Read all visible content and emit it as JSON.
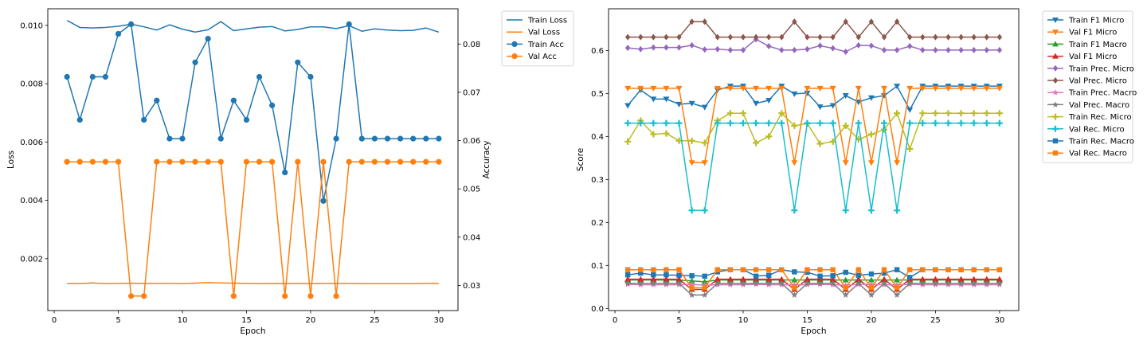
{
  "chart_data": [
    {
      "type": "line",
      "xlabel": "Epoch",
      "ylabel": "Loss",
      "ylabel_right": "Accuracy",
      "xlim": [
        -0.5,
        31.5
      ],
      "ylim": [
        0.00022,
        0.01057
      ],
      "ylim_right": [
        0.0248,
        0.0873
      ],
      "xticks": [
        0,
        5,
        10,
        15,
        20,
        25,
        30
      ],
      "xtick_labels": [
        "0",
        "5",
        "10",
        "15",
        "20",
        "25",
        "30"
      ],
      "yticks": [
        0.002,
        0.004,
        0.006,
        0.008,
        0.01
      ],
      "ytick_labels": [
        "0.002",
        "0.004",
        "0.006",
        "0.008",
        "0.010"
      ],
      "yticks_right": [
        0.03,
        0.04,
        0.05,
        0.06,
        0.07,
        0.08
      ],
      "ytick_labels_right": [
        "0.03",
        "0.04",
        "0.05",
        "0.06",
        "0.07",
        "0.08"
      ],
      "legend_position": "outside-right-top",
      "x": [
        1,
        2,
        3,
        4,
        5,
        6,
        7,
        8,
        9,
        10,
        11,
        12,
        13,
        14,
        15,
        16,
        17,
        18,
        19,
        20,
        21,
        22,
        23,
        24,
        25,
        26,
        27,
        28,
        29,
        30
      ],
      "series": [
        {
          "name": "Train Loss",
          "axis": "left",
          "color": "#1f77b4",
          "marker": "none",
          "values": [
            0.01017,
            0.00993,
            0.00991,
            0.00993,
            0.00997,
            0.01004,
            0.00995,
            0.00984,
            0.01002,
            0.00987,
            0.00977,
            0.00985,
            0.01013,
            0.00982,
            0.00988,
            0.00994,
            0.00996,
            0.00981,
            0.00986,
            0.00995,
            0.00995,
            0.00989,
            0.00999,
            0.0098,
            0.00988,
            0.00984,
            0.00982,
            0.00983,
            0.00991,
            0.00977
          ]
        },
        {
          "name": "Val Loss",
          "axis": "left",
          "color": "#ff7f0e",
          "marker": "none",
          "values": [
            0.00115,
            0.00114,
            0.00117,
            0.00114,
            0.00115,
            0.00116,
            0.00115,
            0.00115,
            0.00115,
            0.00114,
            0.00116,
            0.00118,
            0.00117,
            0.00116,
            0.00115,
            0.00114,
            0.00115,
            0.00114,
            0.00115,
            0.00114,
            0.00115,
            0.00115,
            0.00115,
            0.00114,
            0.00114,
            0.00114,
            0.00114,
            0.00114,
            0.00115,
            0.00115
          ]
        },
        {
          "name": "Train Acc",
          "axis": "right",
          "color": "#1f77b4",
          "marker": "circle",
          "values": [
            0.0732,
            0.0643,
            0.0732,
            0.0732,
            0.0821,
            0.0841,
            0.0643,
            0.0683,
            0.0604,
            0.0604,
            0.0762,
            0.0811,
            0.0604,
            0.0683,
            0.0643,
            0.0732,
            0.0673,
            0.0534,
            0.0762,
            0.0732,
            0.0475,
            0.0604,
            0.0841,
            0.0604,
            0.0604,
            0.0604,
            0.0604,
            0.0604,
            0.0604,
            0.0604
          ]
        },
        {
          "name": "Val Acc",
          "axis": "right",
          "color": "#ff7f0e",
          "marker": "circle",
          "values": [
            0.0556,
            0.0556,
            0.0556,
            0.0556,
            0.0556,
            0.0278,
            0.0278,
            0.0556,
            0.0556,
            0.0556,
            0.0556,
            0.0556,
            0.0556,
            0.0278,
            0.0556,
            0.0556,
            0.0556,
            0.0278,
            0.0556,
            0.0278,
            0.0556,
            0.0278,
            0.0556,
            0.0556,
            0.0556,
            0.0556,
            0.0556,
            0.0556,
            0.0556,
            0.0556
          ]
        }
      ]
    },
    {
      "type": "line",
      "xlabel": "Epoch",
      "ylabel": "Score",
      "xlim": [
        -0.5,
        31.5
      ],
      "ylim": [
        -0.005,
        0.697
      ],
      "xticks": [
        0,
        5,
        10,
        15,
        20,
        25,
        30
      ],
      "xtick_labels": [
        "0",
        "5",
        "10",
        "15",
        "20",
        "25",
        "30"
      ],
      "yticks": [
        0.0,
        0.1,
        0.2,
        0.3,
        0.4,
        0.5,
        0.6
      ],
      "ytick_labels": [
        "0.0",
        "0.1",
        "0.2",
        "0.3",
        "0.4",
        "0.5",
        "0.6"
      ],
      "legend_position": "outside-right-top",
      "x": [
        1,
        2,
        3,
        4,
        5,
        6,
        7,
        8,
        9,
        10,
        11,
        12,
        13,
        14,
        15,
        16,
        17,
        18,
        19,
        20,
        21,
        22,
        23,
        24,
        25,
        26,
        27,
        28,
        29,
        30
      ],
      "series": [
        {
          "name": "Train F1 Micro",
          "color": "#1f77b4",
          "marker": "triangle-down",
          "values": [
            0.472,
            0.508,
            0.487,
            0.487,
            0.475,
            0.477,
            0.468,
            0.508,
            0.517,
            0.517,
            0.477,
            0.484,
            0.517,
            0.499,
            0.501,
            0.469,
            0.472,
            0.495,
            0.48,
            0.49,
            0.495,
            0.517,
            0.462,
            0.517,
            0.517,
            0.517,
            0.517,
            0.517,
            0.517,
            0.517
          ]
        },
        {
          "name": "Val F1 Micro",
          "color": "#ff7f0e",
          "marker": "triangle-down",
          "values": [
            0.512,
            0.512,
            0.512,
            0.512,
            0.512,
            0.339,
            0.339,
            0.512,
            0.512,
            0.512,
            0.512,
            0.512,
            0.512,
            0.339,
            0.512,
            0.512,
            0.512,
            0.339,
            0.512,
            0.339,
            0.512,
            0.339,
            0.512,
            0.512,
            0.512,
            0.512,
            0.512,
            0.512,
            0.512,
            0.512
          ]
        },
        {
          "name": "Train F1 Macro",
          "color": "#2ca02c",
          "marker": "triangle-up",
          "values": [
            0.066,
            0.066,
            0.066,
            0.066,
            0.066,
            0.064,
            0.062,
            0.066,
            0.066,
            0.066,
            0.066,
            0.066,
            0.066,
            0.066,
            0.066,
            0.066,
            0.066,
            0.066,
            0.066,
            0.066,
            0.066,
            0.066,
            0.066,
            0.066,
            0.066,
            0.066,
            0.066,
            0.066,
            0.066,
            0.066
          ]
        },
        {
          "name": "Val F1 Micro",
          "color": "#d62728",
          "marker": "triangle-up",
          "values": [
            0.068,
            0.068,
            0.068,
            0.068,
            0.068,
            0.044,
            0.044,
            0.068,
            0.068,
            0.068,
            0.068,
            0.068,
            0.068,
            0.044,
            0.068,
            0.068,
            0.068,
            0.044,
            0.068,
            0.044,
            0.068,
            0.044,
            0.068,
            0.068,
            0.068,
            0.068,
            0.068,
            0.068,
            0.068,
            0.068
          ]
        },
        {
          "name": "Train Prec. Micro",
          "color": "#9467bd",
          "marker": "diamond",
          "values": [
            0.606,
            0.603,
            0.607,
            0.607,
            0.607,
            0.612,
            0.602,
            0.603,
            0.601,
            0.601,
            0.626,
            0.61,
            0.601,
            0.601,
            0.603,
            0.611,
            0.605,
            0.597,
            0.612,
            0.611,
            0.601,
            0.601,
            0.61,
            0.601,
            0.601,
            0.601,
            0.601,
            0.601,
            0.601,
            0.601
          ]
        },
        {
          "name": "Val Prec. Micro",
          "color": "#8c564b",
          "marker": "diamond",
          "values": [
            0.631,
            0.631,
            0.631,
            0.631,
            0.631,
            0.667,
            0.667,
            0.631,
            0.631,
            0.631,
            0.631,
            0.631,
            0.631,
            0.667,
            0.631,
            0.631,
            0.631,
            0.667,
            0.631,
            0.667,
            0.631,
            0.667,
            0.631,
            0.631,
            0.631,
            0.631,
            0.631,
            0.631,
            0.631,
            0.631
          ]
        },
        {
          "name": "Train Prec. Macro",
          "color": "#e377c2",
          "marker": "star",
          "values": [
            0.056,
            0.055,
            0.055,
            0.055,
            0.055,
            0.056,
            0.054,
            0.055,
            0.055,
            0.055,
            0.056,
            0.055,
            0.055,
            0.055,
            0.055,
            0.056,
            0.055,
            0.054,
            0.056,
            0.056,
            0.055,
            0.055,
            0.056,
            0.055,
            0.055,
            0.055,
            0.055,
            0.055,
            0.055,
            0.055
          ]
        },
        {
          "name": "Val Prec. Macro",
          "color": "#7f7f7f",
          "marker": "star",
          "values": [
            0.058,
            0.058,
            0.058,
            0.058,
            0.058,
            0.031,
            0.031,
            0.058,
            0.058,
            0.058,
            0.058,
            0.058,
            0.058,
            0.031,
            0.058,
            0.058,
            0.058,
            0.031,
            0.058,
            0.031,
            0.058,
            0.031,
            0.058,
            0.058,
            0.058,
            0.058,
            0.058,
            0.058,
            0.058,
            0.058
          ]
        },
        {
          "name": "Train Rec. Micro",
          "color": "#bcbd22",
          "marker": "plus",
          "values": [
            0.388,
            0.437,
            0.405,
            0.407,
            0.39,
            0.39,
            0.385,
            0.437,
            0.454,
            0.454,
            0.385,
            0.4,
            0.454,
            0.425,
            0.43,
            0.383,
            0.388,
            0.425,
            0.393,
            0.405,
            0.416,
            0.454,
            0.371,
            0.454,
            0.454,
            0.454,
            0.454,
            0.454,
            0.454,
            0.454
          ]
        },
        {
          "name": "Val Rec. Micro",
          "color": "#17becf",
          "marker": "plus",
          "values": [
            0.431,
            0.431,
            0.431,
            0.431,
            0.431,
            0.228,
            0.228,
            0.431,
            0.431,
            0.431,
            0.431,
            0.431,
            0.431,
            0.228,
            0.431,
            0.431,
            0.431,
            0.228,
            0.431,
            0.228,
            0.431,
            0.228,
            0.431,
            0.431,
            0.431,
            0.431,
            0.431,
            0.431,
            0.431,
            0.431
          ]
        },
        {
          "name": "Train Rec. Macro",
          "color": "#1f77b4",
          "marker": "square",
          "values": [
            0.078,
            0.082,
            0.078,
            0.078,
            0.077,
            0.076,
            0.075,
            0.085,
            0.09,
            0.09,
            0.075,
            0.077,
            0.09,
            0.085,
            0.084,
            0.075,
            0.076,
            0.084,
            0.077,
            0.08,
            0.082,
            0.09,
            0.072,
            0.09,
            0.09,
            0.09,
            0.09,
            0.09,
            0.09,
            0.09
          ]
        },
        {
          "name": "Val Rec. Macro",
          "color": "#ff7f0e",
          "marker": "square",
          "values": [
            0.09,
            0.09,
            0.09,
            0.09,
            0.09,
            0.048,
            0.048,
            0.09,
            0.09,
            0.09,
            0.09,
            0.09,
            0.09,
            0.048,
            0.09,
            0.09,
            0.09,
            0.048,
            0.09,
            0.048,
            0.09,
            0.048,
            0.09,
            0.09,
            0.09,
            0.09,
            0.09,
            0.09,
            0.09,
            0.09
          ]
        }
      ]
    }
  ]
}
